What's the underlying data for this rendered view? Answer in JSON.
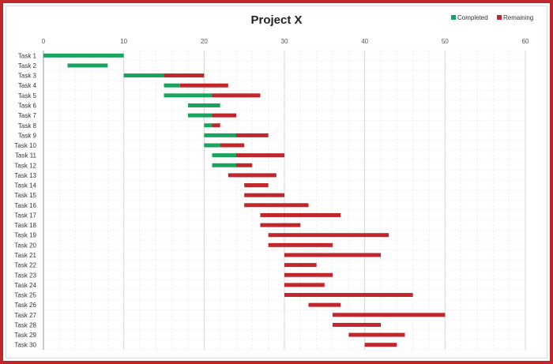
{
  "chart_data": {
    "type": "bar",
    "orientation": "horizontal",
    "stacked": true,
    "title": "Project X",
    "xlim": [
      0,
      60
    ],
    "xticks": [
      0,
      10,
      20,
      30,
      40,
      50,
      60
    ],
    "legend_position": "top-right",
    "categories": [
      "Task 1",
      "Task 2",
      "Task 3",
      "Task 4",
      "Task 5",
      "Task 6",
      "Task 7",
      "Task 8",
      "Task 9",
      "Task 10",
      "Task 11",
      "Task 12",
      "Task 13",
      "Task 14",
      "Task 15",
      "Task 16",
      "Task 17",
      "Task 18",
      "Task 19",
      "Task 20",
      "Task 21",
      "Task 22",
      "Task 23",
      "Task 24",
      "Task 25",
      "Task 26",
      "Task 27",
      "Task 28",
      "Task 29",
      "Task 30"
    ],
    "start": [
      0,
      3,
      10,
      15,
      15,
      18,
      18,
      20,
      20,
      20,
      21,
      21,
      23,
      25,
      25,
      25,
      27,
      27,
      28,
      28,
      30,
      30,
      30,
      30,
      30,
      33,
      36,
      36,
      38,
      40
    ],
    "series": [
      {
        "name": "Completed",
        "color": "#1aa35e",
        "values": [
          10,
          5,
          5,
          2,
          6,
          4,
          3,
          1,
          4,
          2,
          3,
          3,
          0,
          0,
          0,
          0,
          0,
          0,
          0,
          0,
          0,
          0,
          0,
          0,
          0,
          0,
          0,
          0,
          0,
          0
        ]
      },
      {
        "name": "Remaining",
        "color": "#c0272d",
        "values": [
          0,
          0,
          5,
          6,
          6,
          0,
          3,
          1,
          4,
          3,
          6,
          2,
          6,
          3,
          5,
          8,
          10,
          5,
          15,
          8,
          12,
          4,
          6,
          5,
          16,
          4,
          14,
          6,
          7,
          4
        ]
      }
    ],
    "grid": true
  }
}
